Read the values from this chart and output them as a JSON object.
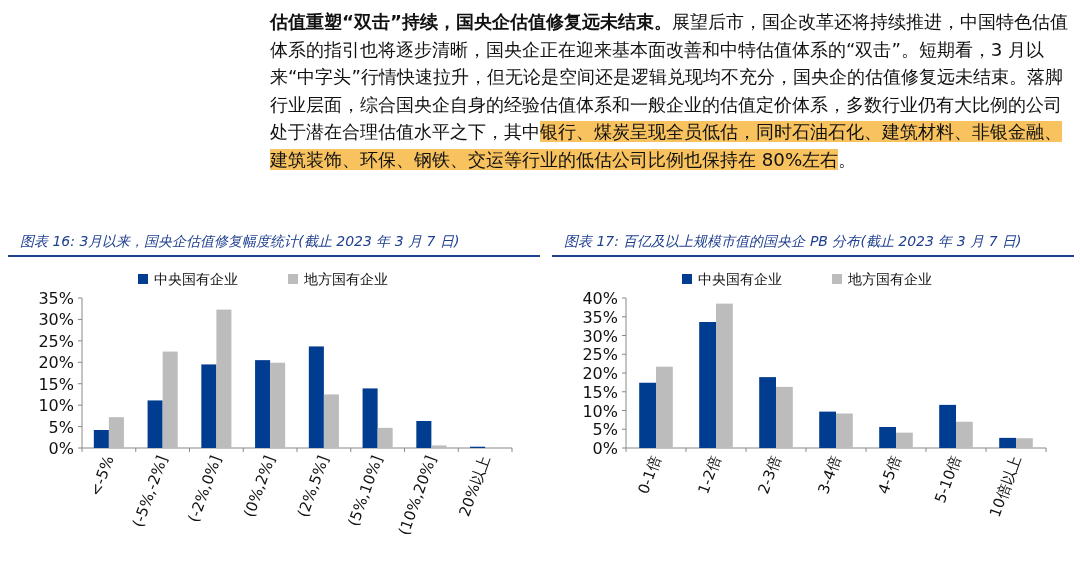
{
  "chart_data": [
    {
      "type": "other",
      "annotations": [
        "估值重塑“双击”持续，国央企估值修复远未结束。",
        "展望后市，国企改革还将持续推进，中国特色估值体系的指引也将逐步清晰，国央企正在迎来基本面改善和中特估值体系的“双击”。短期看，3 月以来“中字头”行情快速拉升，但无论是空间还是逻辑兑现均不充分，国央企的估值修复远未结束。落脚行业层面，综合国央企自身的经验估值体系和一般企业的估值定价体系，多数行业仍有大比例的公司处于潜在合理估值水平之下，其中",
        "银行、煤炭呈现全员低估，同时石油石化、建筑材料、非银金融、建筑装饰、环保、钢铁、交运等行业的低估公司比例也保持在 80%左右",
        "。"
      ]
    },
    {
      "type": "bar",
      "title": "图表 16: 3月以来，国央企估值修复幅度统计(截止 2023 年 3 月 7 日)",
      "categories": [
        "<-5%",
        "(-5%,-2%]",
        "(-2%,0%]",
        "(0%,2%]",
        "(2%,5%]",
        "(5%,10%]",
        "(10%,20%]",
        "20%以上"
      ],
      "series": [
        {
          "name": "中央国有企业",
          "color": "#003c8f",
          "values": [
            4.2,
            11.1,
            19.5,
            20.5,
            23.7,
            13.9,
            6.3,
            0.3
          ]
        },
        {
          "name": "地方国有企业",
          "color": "#bcbcbc",
          "values": [
            7.2,
            22.5,
            32.3,
            19.9,
            12.5,
            4.7,
            0.6,
            0
          ]
        }
      ],
      "ylim": [
        0,
        35
      ],
      "yticks": [
        {
          "value": 0,
          "label": "0%"
        },
        {
          "value": 5,
          "label": "5%"
        },
        {
          "value": 10,
          "label": "10%"
        },
        {
          "value": 15,
          "label": "15%"
        },
        {
          "value": 20,
          "label": "20%"
        },
        {
          "value": 25,
          "label": "25%"
        },
        {
          "value": 30,
          "label": "30%"
        },
        {
          "value": 35,
          "label": "35%"
        }
      ],
      "legend": "top",
      "grid": false
    },
    {
      "type": "bar",
      "title": "图表 17: 百亿及以上规模市值的国央企 PB 分布(截止 2023 年 3 月 7 日)",
      "categories": [
        "0-1倍",
        "1-2倍",
        "2-3倍",
        "3-4倍",
        "4-5倍",
        "5-10倍",
        "10倍以上"
      ],
      "series": [
        {
          "name": "中央国有企业",
          "color": "#003c8f",
          "values": [
            17.4,
            33.6,
            18.9,
            9.7,
            5.6,
            11.5,
            2.7
          ]
        },
        {
          "name": "地方国有企业",
          "color": "#bcbcbc",
          "values": [
            21.7,
            38.5,
            16.3,
            9.2,
            4.1,
            7.0,
            2.6
          ]
        }
      ],
      "ylim": [
        0,
        40
      ],
      "yticks": [
        {
          "value": 0,
          "label": "0%"
        },
        {
          "value": 5,
          "label": "5%"
        },
        {
          "value": 10,
          "label": "10%"
        },
        {
          "value": 15,
          "label": "15%"
        },
        {
          "value": 20,
          "label": "20%"
        },
        {
          "value": 25,
          "label": "25%"
        },
        {
          "value": 30,
          "label": "30%"
        },
        {
          "value": 35,
          "label": "35%"
        },
        {
          "value": 40,
          "label": "40%"
        }
      ],
      "legend": "top",
      "grid": false
    }
  ]
}
